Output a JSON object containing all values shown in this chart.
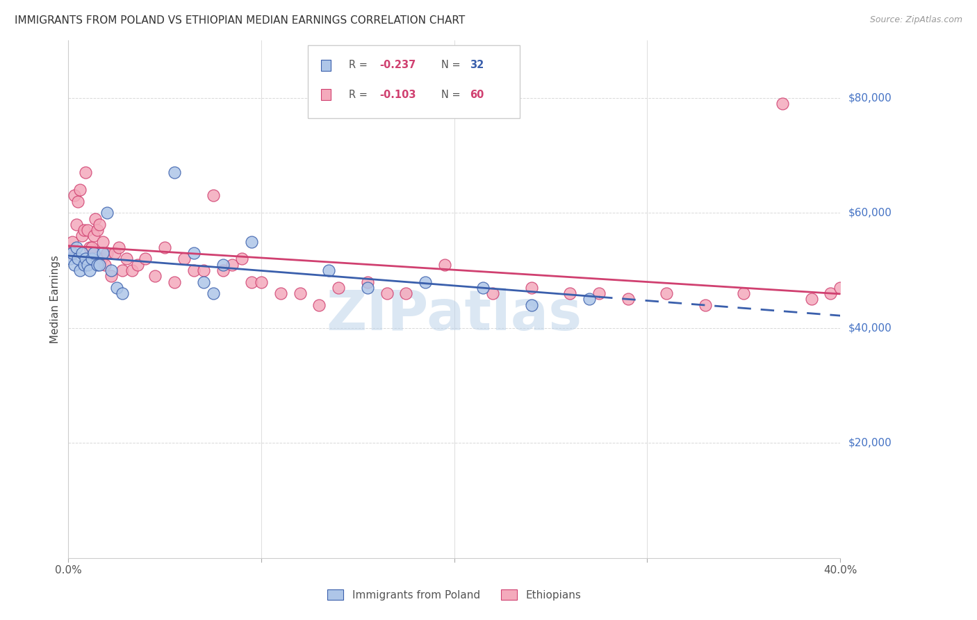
{
  "title": "IMMIGRANTS FROM POLAND VS ETHIOPIAN MEDIAN EARNINGS CORRELATION CHART",
  "source": "Source: ZipAtlas.com",
  "ylabel": "Median Earnings",
  "ytick_labels": [
    "$20,000",
    "$40,000",
    "$60,000",
    "$80,000"
  ],
  "ytick_values": [
    20000,
    40000,
    60000,
    80000
  ],
  "ymax": 90000,
  "ymin": 0,
  "xmin": 0.0,
  "xmax": 0.4,
  "label_poland": "Immigrants from Poland",
  "label_ethiopians": "Ethiopians",
  "color_poland": "#aec6e8",
  "color_ethiopian": "#f4aabc",
  "color_trend_poland": "#3a5fac",
  "color_trend_ethiopian": "#d04070",
  "color_axis_labels": "#4472c4",
  "watermark_text": "ZIPatlas",
  "watermark_color": "#b8d0e8",
  "poland_x": [
    0.001,
    0.002,
    0.003,
    0.004,
    0.005,
    0.006,
    0.007,
    0.008,
    0.009,
    0.01,
    0.011,
    0.012,
    0.013,
    0.015,
    0.016,
    0.018,
    0.02,
    0.022,
    0.025,
    0.028,
    0.055,
    0.065,
    0.07,
    0.075,
    0.08,
    0.095,
    0.135,
    0.155,
    0.185,
    0.215,
    0.24,
    0.27
  ],
  "poland_y": [
    52000,
    53000,
    51000,
    54000,
    52000,
    50000,
    53000,
    51000,
    52000,
    51000,
    50000,
    52000,
    53000,
    51000,
    51000,
    53000,
    60000,
    50000,
    47000,
    46000,
    67000,
    53000,
    48000,
    46000,
    51000,
    55000,
    50000,
    47000,
    48000,
    47000,
    44000,
    45000
  ],
  "ethiopian_x": [
    0.001,
    0.002,
    0.003,
    0.004,
    0.005,
    0.006,
    0.007,
    0.008,
    0.009,
    0.01,
    0.011,
    0.012,
    0.013,
    0.014,
    0.015,
    0.016,
    0.017,
    0.018,
    0.019,
    0.02,
    0.022,
    0.024,
    0.026,
    0.028,
    0.03,
    0.033,
    0.036,
    0.04,
    0.045,
    0.05,
    0.055,
    0.06,
    0.065,
    0.07,
    0.075,
    0.08,
    0.085,
    0.09,
    0.095,
    0.1,
    0.11,
    0.12,
    0.13,
    0.14,
    0.155,
    0.165,
    0.175,
    0.195,
    0.22,
    0.24,
    0.26,
    0.275,
    0.29,
    0.31,
    0.33,
    0.35,
    0.37,
    0.385,
    0.395,
    0.4
  ],
  "ethiopian_y": [
    53000,
    55000,
    63000,
    58000,
    62000,
    64000,
    56000,
    57000,
    67000,
    57000,
    54000,
    54000,
    56000,
    59000,
    57000,
    58000,
    52000,
    55000,
    51000,
    53000,
    49000,
    53000,
    54000,
    50000,
    52000,
    50000,
    51000,
    52000,
    49000,
    54000,
    48000,
    52000,
    50000,
    50000,
    63000,
    50000,
    51000,
    52000,
    48000,
    48000,
    46000,
    46000,
    44000,
    47000,
    48000,
    46000,
    46000,
    51000,
    46000,
    47000,
    46000,
    46000,
    45000,
    46000,
    44000,
    46000,
    79000,
    45000,
    46000,
    47000
  ],
  "grid_color": "#d8d8d8",
  "background_color": "#ffffff"
}
